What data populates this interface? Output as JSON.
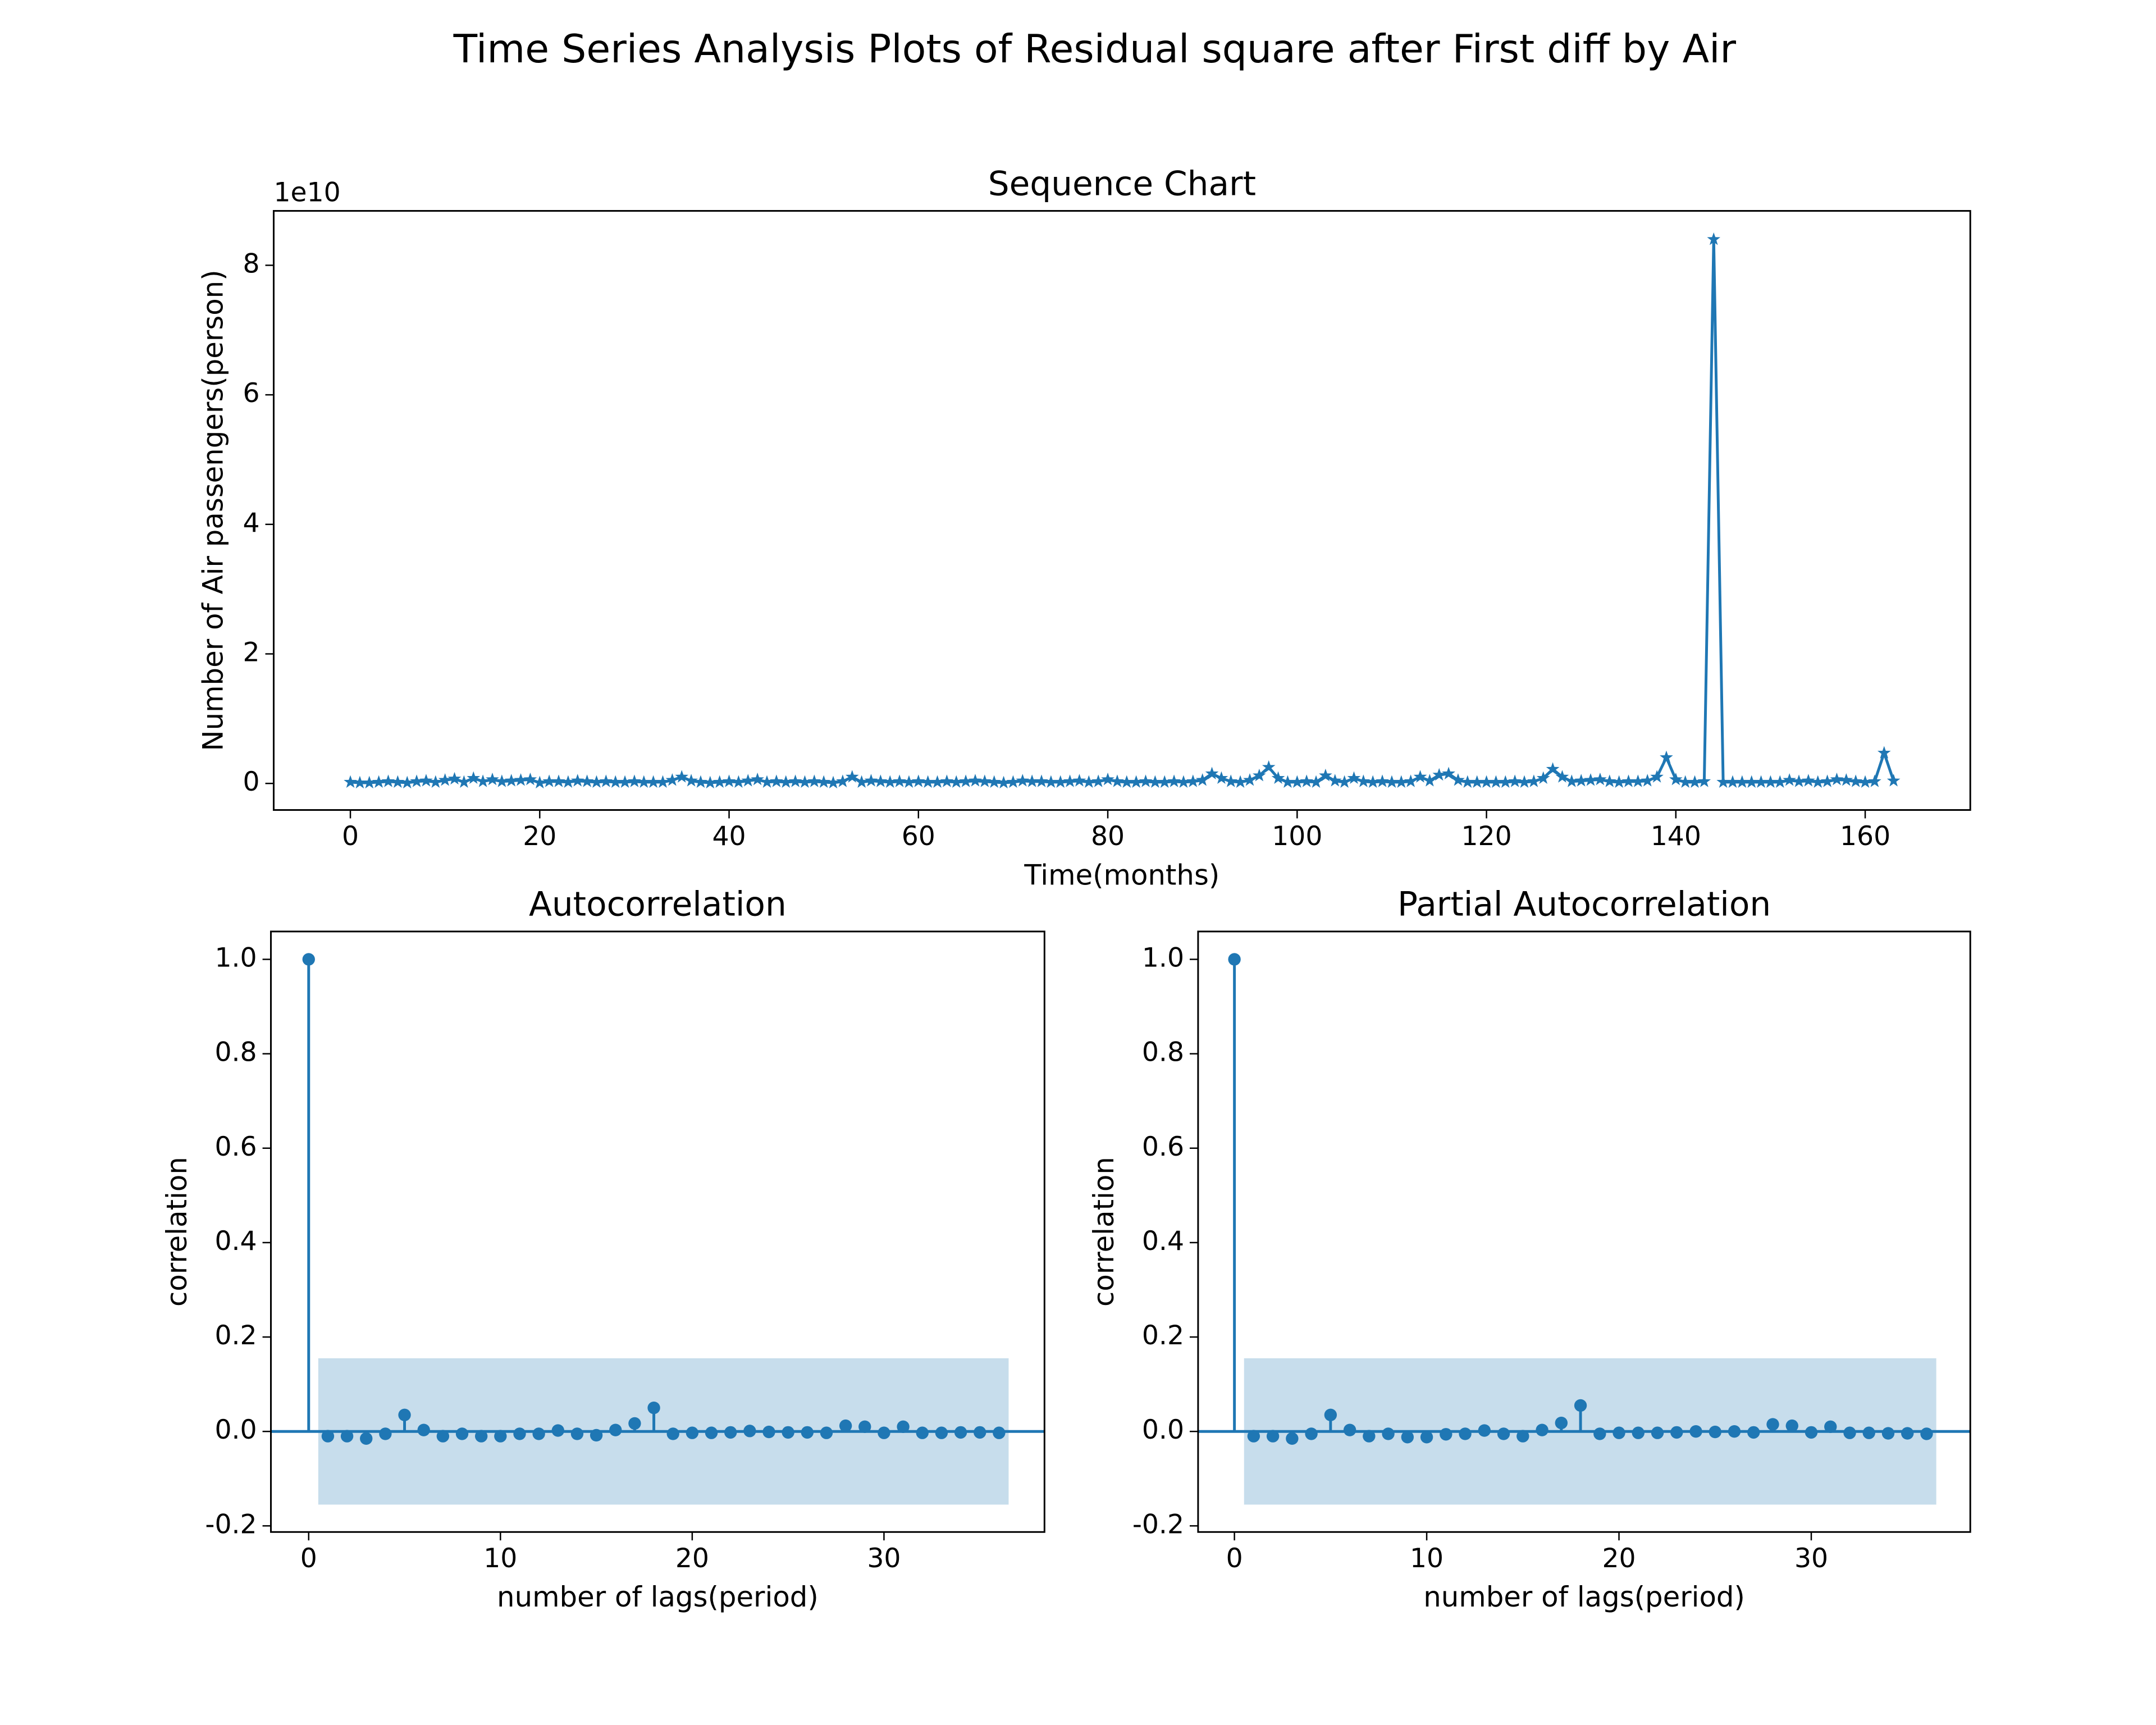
{
  "title": "Time Series Analysis Plots of Residual square after First diff by Air",
  "chart_data": [
    {
      "type": "line",
      "title": "Sequence Chart",
      "xlabel": "Time(months)",
      "ylabel": "Number of Air passengers(person)",
      "y_offset_label": "1e10",
      "color": "#1f77b4",
      "marker": "star",
      "x": [
        0,
        1,
        2,
        3,
        4,
        5,
        6,
        7,
        8,
        9,
        10,
        11,
        12,
        13,
        14,
        15,
        16,
        17,
        18,
        19,
        20,
        21,
        22,
        23,
        24,
        25,
        26,
        27,
        28,
        29,
        30,
        31,
        32,
        33,
        34,
        35,
        36,
        37,
        38,
        39,
        40,
        41,
        42,
        43,
        44,
        45,
        46,
        47,
        48,
        49,
        50,
        51,
        52,
        53,
        54,
        55,
        56,
        57,
        58,
        59,
        60,
        61,
        62,
        63,
        64,
        65,
        66,
        67,
        68,
        69,
        70,
        71,
        72,
        73,
        74,
        75,
        76,
        77,
        78,
        79,
        80,
        81,
        82,
        83,
        84,
        85,
        86,
        87,
        88,
        89,
        90,
        91,
        92,
        93,
        94,
        95,
        96,
        97,
        98,
        99,
        100,
        101,
        102,
        103,
        104,
        105,
        106,
        107,
        108,
        109,
        110,
        111,
        112,
        113,
        114,
        115,
        116,
        117,
        118,
        119,
        120,
        121,
        122,
        123,
        124,
        125,
        126,
        127,
        128,
        129,
        130,
        131,
        132,
        133,
        134,
        135,
        136,
        137,
        138,
        139,
        140,
        141,
        142,
        143,
        144,
        145,
        146,
        147,
        148,
        149,
        150,
        151,
        152,
        153,
        154,
        155,
        156,
        157,
        158,
        159,
        160,
        161,
        162,
        163
      ],
      "values": [
        0.02,
        0.01,
        0.01,
        0.02,
        0.03,
        0.02,
        0.01,
        0.03,
        0.04,
        0.02,
        0.05,
        0.07,
        0.02,
        0.08,
        0.03,
        0.06,
        0.03,
        0.04,
        0.05,
        0.06,
        0.01,
        0.03,
        0.03,
        0.02,
        0.04,
        0.03,
        0.02,
        0.03,
        0.02,
        0.02,
        0.03,
        0.02,
        0.02,
        0.02,
        0.05,
        0.1,
        0.04,
        0.02,
        0.01,
        0.02,
        0.03,
        0.02,
        0.04,
        0.06,
        0.02,
        0.03,
        0.02,
        0.03,
        0.02,
        0.03,
        0.02,
        0.01,
        0.03,
        0.1,
        0.02,
        0.04,
        0.03,
        0.02,
        0.03,
        0.02,
        0.03,
        0.02,
        0.02,
        0.03,
        0.02,
        0.03,
        0.04,
        0.03,
        0.02,
        0.01,
        0.02,
        0.04,
        0.03,
        0.03,
        0.02,
        0.02,
        0.03,
        0.04,
        0.02,
        0.03,
        0.06,
        0.03,
        0.02,
        0.02,
        0.03,
        0.02,
        0.02,
        0.03,
        0.02,
        0.03,
        0.05,
        0.15,
        0.08,
        0.03,
        0.02,
        0.05,
        0.12,
        0.25,
        0.08,
        0.02,
        0.02,
        0.03,
        0.02,
        0.12,
        0.04,
        0.02,
        0.08,
        0.03,
        0.02,
        0.03,
        0.02,
        0.02,
        0.03,
        0.1,
        0.04,
        0.13,
        0.15,
        0.05,
        0.02,
        0.02,
        0.02,
        0.02,
        0.02,
        0.03,
        0.02,
        0.03,
        0.08,
        0.22,
        0.1,
        0.03,
        0.04,
        0.05,
        0.06,
        0.03,
        0.02,
        0.03,
        0.03,
        0.04,
        0.1,
        0.4,
        0.06,
        0.02,
        0.02,
        0.03,
        8.4,
        0.02,
        0.02,
        0.02,
        0.02,
        0.02,
        0.02,
        0.02,
        0.05,
        0.03,
        0.04,
        0.02,
        0.03,
        0.06,
        0.05,
        0.03,
        0.02,
        0.03,
        0.47,
        0.04
      ],
      "xlim": [
        -8.1,
        171.1
      ],
      "ylim": [
        -0.41,
        8.84
      ],
      "xticks": [
        0,
        20,
        40,
        60,
        80,
        100,
        120,
        140,
        160
      ],
      "yticks": [
        0,
        2,
        4,
        6,
        8
      ]
    },
    {
      "type": "stem",
      "title": "Autocorrelation",
      "xlabel": "number of lags(period)",
      "ylabel": "correlation",
      "color": "#1f77b4",
      "confint": 0.155,
      "x": [
        0,
        1,
        2,
        3,
        4,
        5,
        6,
        7,
        8,
        9,
        10,
        11,
        12,
        13,
        14,
        15,
        16,
        17,
        18,
        19,
        20,
        21,
        22,
        23,
        24,
        25,
        26,
        27,
        28,
        29,
        30,
        31,
        32,
        33,
        34,
        35,
        36
      ],
      "values": [
        1,
        -0.01,
        -0.01,
        -0.015,
        -0.005,
        0.035,
        0.003,
        -0.01,
        -0.005,
        -0.01,
        -0.01,
        -0.005,
        -0.005,
        0.002,
        -0.005,
        -0.008,
        0.003,
        0.017,
        0.05,
        -0.005,
        -0.003,
        -0.003,
        -0.002,
        0.001,
        -0.001,
        -0.002,
        -0.002,
        -0.003,
        0.012,
        0.01,
        -0.003,
        0.01,
        -0.003,
        -0.003,
        -0.002,
        -0.002,
        -0.003
      ],
      "xlim": [
        -1.97,
        38.37
      ],
      "ylim": [
        -0.213,
        1.059
      ],
      "xticks": [
        0,
        10,
        20,
        30
      ],
      "yticks": [
        -0.2,
        {
          "value": 0,
          "label": "0.0"
        },
        0.2,
        0.4,
        0.6,
        0.8,
        {
          "value": 1,
          "label": "1.0"
        }
      ]
    },
    {
      "type": "stem",
      "title": "Partial Autocorrelation",
      "xlabel": "number of lags(period)",
      "ylabel": "correlation",
      "color": "#1f77b4",
      "confint": 0.155,
      "x": [
        0,
        1,
        2,
        3,
        4,
        5,
        6,
        7,
        8,
        9,
        10,
        11,
        12,
        13,
        14,
        15,
        16,
        17,
        18,
        19,
        20,
        21,
        22,
        23,
        24,
        25,
        26,
        27,
        28,
        29,
        30,
        31,
        32,
        33,
        34,
        35,
        36
      ],
      "values": [
        1,
        -0.01,
        -0.01,
        -0.015,
        -0.005,
        0.035,
        0.003,
        -0.01,
        -0.005,
        -0.012,
        -0.012,
        -0.006,
        -0.005,
        0.002,
        -0.005,
        -0.01,
        0.003,
        0.018,
        0.055,
        -0.005,
        -0.003,
        -0.003,
        -0.003,
        -0.002,
        0,
        -0.001,
        0,
        -0.002,
        0.015,
        0.012,
        -0.002,
        0.01,
        -0.003,
        -0.003,
        -0.004,
        -0.004,
        -0.005
      ],
      "xlim": [
        -1.89,
        38.27
      ],
      "ylim": [
        -0.213,
        1.059
      ],
      "xticks": [
        0,
        10,
        20,
        30
      ],
      "yticks": [
        -0.2,
        {
          "value": 0,
          "label": "0.0"
        },
        0.2,
        0.4,
        0.6,
        0.8,
        {
          "value": 1,
          "label": "1.0"
        }
      ]
    }
  ]
}
